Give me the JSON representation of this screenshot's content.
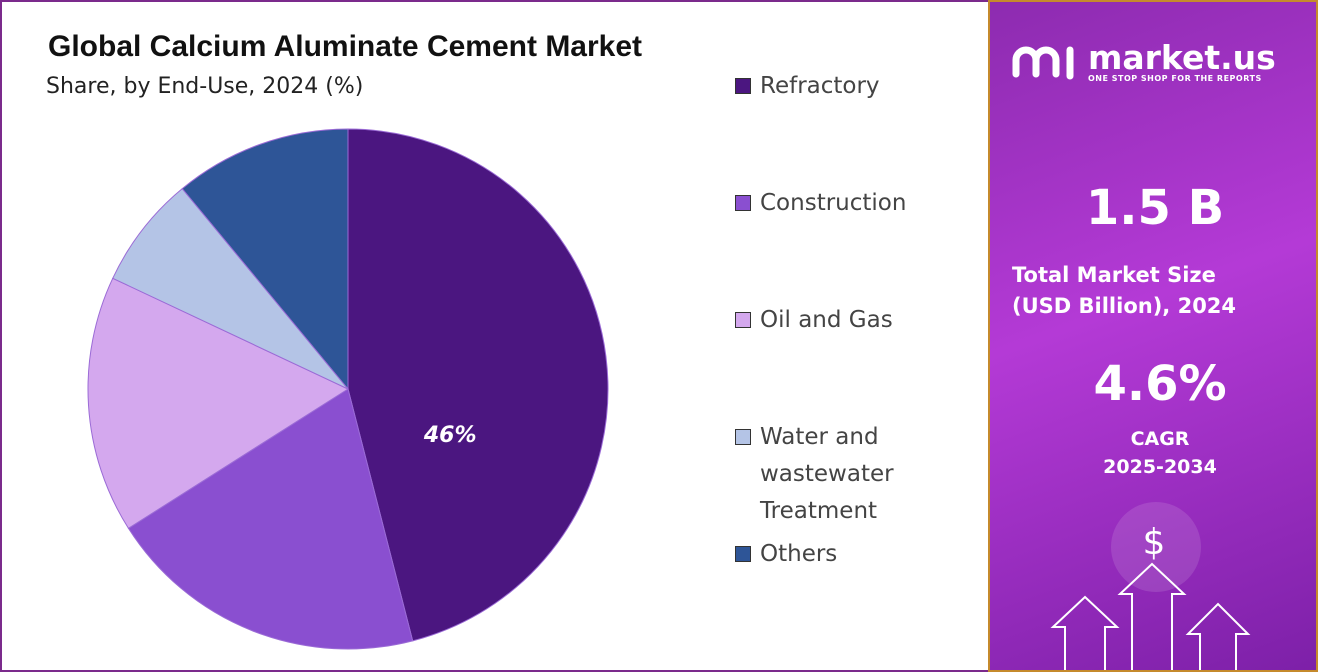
{
  "chart_data": {
    "type": "pie",
    "title": "Global Calcium Aluminate Cement Market",
    "subtitle": "Share, by End-Use, 2024 (%)",
    "categories": [
      "Refractory",
      "Construction",
      "Oil and Gas",
      "Water and wastewater Treatment",
      "Others"
    ],
    "values": [
      46,
      20,
      16,
      7,
      11
    ],
    "value_labels": [
      "46%",
      null,
      null,
      null,
      null
    ],
    "colors": [
      "#4b1680",
      "#8a4fd0",
      "#d4a8ee",
      "#b4c4e6",
      "#2e5597"
    ],
    "legend": "right"
  },
  "panel": {
    "brand": "market.us",
    "tagline": "ONE STOP SHOP FOR THE REPORTS",
    "market_size": "1.5 B",
    "market_size_label": "Total Market Size (USD Billion), 2024",
    "cagr": "4.6%",
    "cagr_label": "CAGR",
    "cagr_period": "2025-2034"
  }
}
